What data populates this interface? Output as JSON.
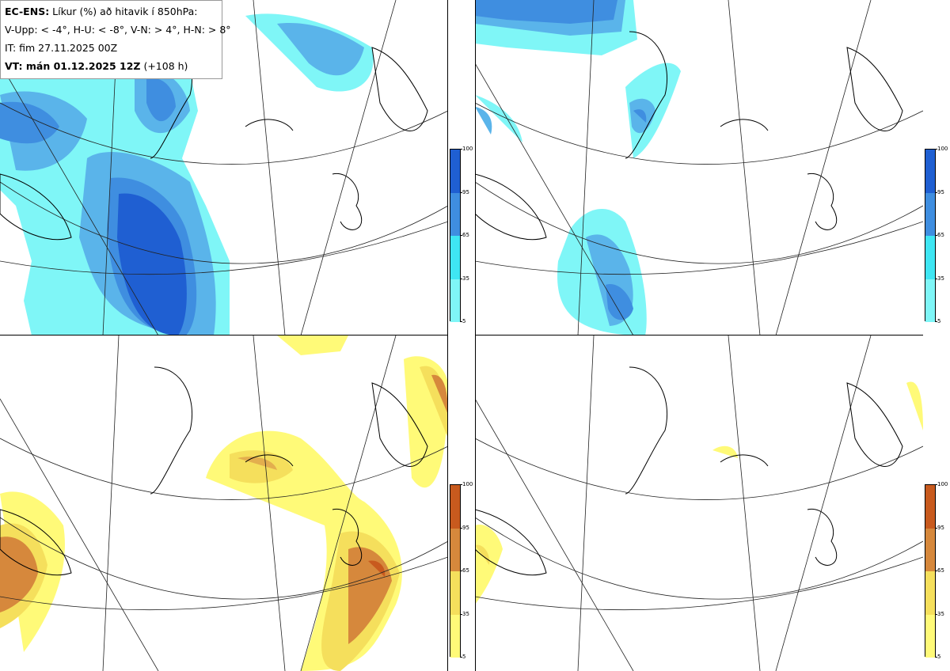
{
  "legend": {
    "line1_bold": "EC-ENS:",
    "line1_rest": " Líkur (%) að hitavik í 850hPa:",
    "line2": "V-Upp: < -4°, H-U: < -8°, V-N: > 4°, H-N: > 8°",
    "line3": "IT: fim 27.11.2025 00Z",
    "line4_bold": "VT: mán 01.12.2025 12Z",
    "line4_rest": " (+108 h)"
  },
  "colorbar_ticks": [
    "100",
    "95",
    "65",
    "35",
    "5"
  ],
  "colors": {
    "cold_scale": [
      "#7ff6f7",
      "#3fe6f3",
      "#5ab4ea",
      "#3f8ee0",
      "#1f5fd2"
    ],
    "warm_scale": [
      "#fffa78",
      "#f5df5c",
      "#e3ae4e",
      "#d6883c",
      "#c85a1e"
    ]
  },
  "panels": [
    {
      "id": "V-Upp",
      "description_scale": "cold"
    },
    {
      "id": "H-U",
      "description_scale": "cold"
    },
    {
      "id": "V-N",
      "description_scale": "warm"
    },
    {
      "id": "H-N",
      "description_scale": "warm"
    }
  ]
}
